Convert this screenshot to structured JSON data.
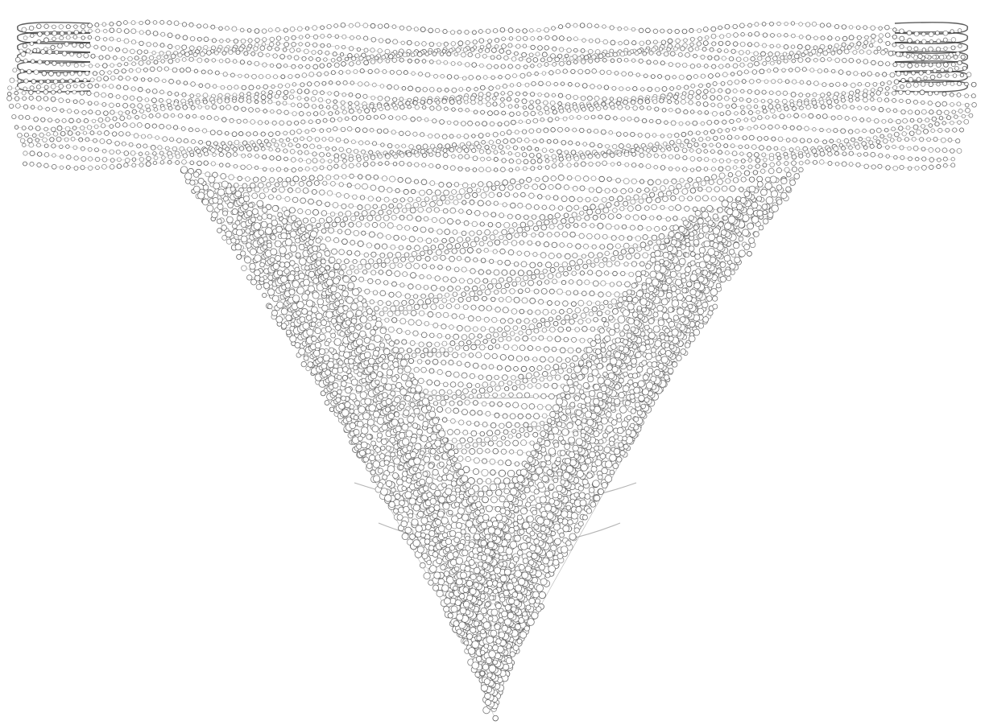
{
  "artwork": {
    "background_color": "#ffffff",
    "ring_stroke_color": "#4a4a4a",
    "ring_fill_color": "#ffffff",
    "band_color": "#777777",
    "style": "generative interlaced bead-loop wireframe funnel"
  }
}
